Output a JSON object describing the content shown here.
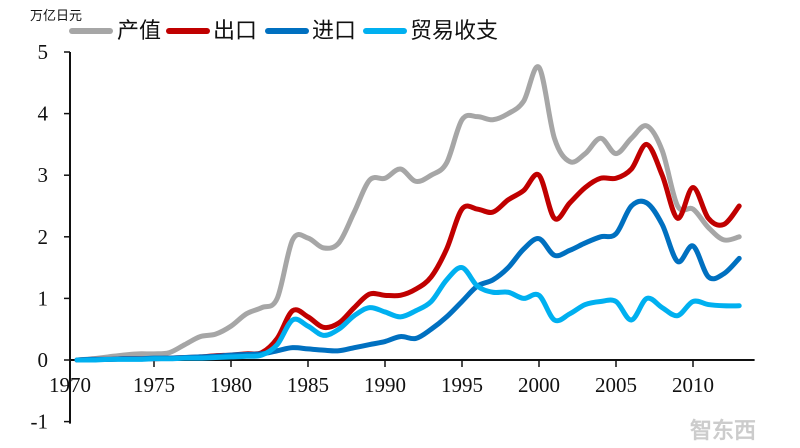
{
  "watermark": "智东西",
  "chart_data": {
    "type": "line",
    "ylabel": "万亿日元",
    "ylim": [
      -1,
      5
    ],
    "xlim": [
      1970,
      2014
    ],
    "yticks": [
      -1,
      0,
      1,
      2,
      3,
      4,
      5
    ],
    "xticks": [
      1970,
      1975,
      1980,
      1985,
      1990,
      1995,
      2000,
      2005,
      2010
    ],
    "legend_position": "top",
    "grid": false,
    "x": [
      1970,
      1971,
      1972,
      1973,
      1974,
      1975,
      1976,
      1977,
      1978,
      1979,
      1980,
      1981,
      1982,
      1983,
      1984,
      1985,
      1986,
      1987,
      1988,
      1989,
      1990,
      1991,
      1992,
      1993,
      1994,
      1995,
      1996,
      1997,
      1998,
      1999,
      2000,
      2001,
      2002,
      2003,
      2004,
      2005,
      2006,
      2007,
      2008,
      2009,
      2010,
      2011,
      2012,
      2013
    ],
    "series": [
      {
        "name": "产值",
        "color": "#a6a6a6",
        "values": [
          0,
          0.02,
          0.05,
          0.08,
          0.1,
          0.1,
          0.12,
          0.25,
          0.38,
          0.42,
          0.55,
          0.75,
          0.85,
          1.0,
          1.95,
          1.98,
          1.82,
          1.9,
          2.4,
          2.92,
          2.95,
          3.1,
          2.9,
          3.0,
          3.2,
          3.9,
          3.95,
          3.9,
          4.0,
          4.2,
          4.75,
          3.6,
          3.22,
          3.35,
          3.6,
          3.35,
          3.6,
          3.8,
          3.4,
          2.5,
          2.45,
          2.15,
          1.95,
          2.0
        ]
      },
      {
        "name": "出口",
        "color": "#c00000",
        "values": [
          0,
          0.01,
          0.01,
          0.02,
          0.02,
          0.02,
          0.03,
          0.04,
          0.05,
          0.07,
          0.08,
          0.1,
          0.12,
          0.35,
          0.8,
          0.7,
          0.53,
          0.6,
          0.85,
          1.07,
          1.05,
          1.05,
          1.15,
          1.35,
          1.8,
          2.45,
          2.45,
          2.4,
          2.6,
          2.75,
          3.0,
          2.3,
          2.55,
          2.8,
          2.95,
          2.95,
          3.1,
          3.5,
          3.0,
          2.3,
          2.8,
          2.3,
          2.2,
          2.5
        ]
      },
      {
        "name": "进口",
        "color": "#0070c0",
        "values": [
          0,
          0.01,
          0.01,
          0.02,
          0.02,
          0.03,
          0.03,
          0.04,
          0.05,
          0.06,
          0.08,
          0.09,
          0.1,
          0.15,
          0.2,
          0.18,
          0.16,
          0.15,
          0.2,
          0.25,
          0.3,
          0.38,
          0.35,
          0.5,
          0.7,
          0.95,
          1.2,
          1.3,
          1.5,
          1.8,
          1.97,
          1.7,
          1.78,
          1.9,
          2.0,
          2.05,
          2.5,
          2.55,
          2.2,
          1.6,
          1.85,
          1.35,
          1.4,
          1.65
        ]
      },
      {
        "name": "贸易收支",
        "color": "#00b0f0",
        "values": [
          0,
          0.0,
          0.01,
          0.01,
          0.01,
          0.02,
          0.02,
          0.03,
          0.03,
          0.04,
          0.05,
          0.06,
          0.08,
          0.25,
          0.65,
          0.55,
          0.4,
          0.5,
          0.72,
          0.85,
          0.78,
          0.7,
          0.8,
          0.95,
          1.3,
          1.5,
          1.2,
          1.1,
          1.1,
          1.0,
          1.05,
          0.65,
          0.75,
          0.9,
          0.95,
          0.95,
          0.65,
          1.0,
          0.85,
          0.72,
          0.95,
          0.9,
          0.88,
          0.88
        ]
      }
    ]
  }
}
